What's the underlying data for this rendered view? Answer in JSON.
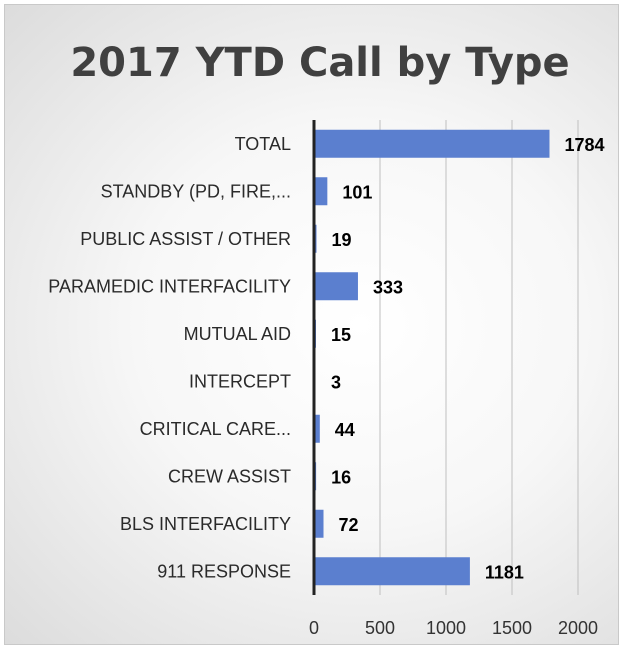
{
  "chart_data": {
    "type": "bar",
    "orientation": "horizontal",
    "title": "2017 YTD Call by Type",
    "categories": [
      "TOTAL",
      "STANDBY (PD, FIRE,...",
      "PUBLIC ASSIST / OTHER",
      "PARAMEDIC INTERFACILITY",
      "MUTUAL AID",
      "INTERCEPT",
      "CRITICAL CARE...",
      "CREW ASSIST",
      "BLS INTERFACILITY",
      "911 RESPONSE"
    ],
    "values": [
      1784,
      101,
      19,
      333,
      15,
      3,
      44,
      16,
      72,
      1181
    ],
    "data_labels": [
      "1784",
      "101",
      "19",
      "333",
      "15",
      "3",
      "44",
      "16",
      "72",
      "1181"
    ],
    "xlim": [
      0,
      2000
    ],
    "ticks": [
      "0",
      "500",
      "1000",
      "1500",
      "2000"
    ],
    "tick_values": [
      0,
      500,
      1000,
      1500,
      2000
    ],
    "grid": true,
    "legend": "none",
    "bar_color": "#5b7fcf",
    "gridline_color": "#bfbfbf"
  }
}
